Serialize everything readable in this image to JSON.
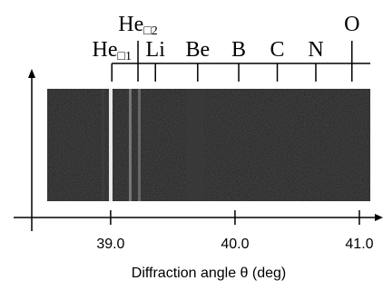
{
  "chart_data": {
    "type": "spectrum",
    "xlabel": "Diffraction angle θ (deg)",
    "xlim": [
      38.22,
      41.19
    ],
    "xticks": [
      {
        "value": 39,
        "label": "39.0"
      },
      {
        "value": 40,
        "label": "40.0"
      },
      {
        "value": 41,
        "label": "41.0"
      }
    ],
    "markers": [
      {
        "label": "He",
        "sub": "□1",
        "x": 39.01
      },
      {
        "label": "He",
        "sub": "□2",
        "x": 39.22
      },
      {
        "label": "Li",
        "x": 39.36
      },
      {
        "label": "Be",
        "x": 39.7
      },
      {
        "label": "B",
        "x": 40.03
      },
      {
        "label": "C",
        "x": 40.34
      },
      {
        "label": "N",
        "x": 40.65
      },
      {
        "label": "O",
        "x": 40.94
      }
    ]
  }
}
